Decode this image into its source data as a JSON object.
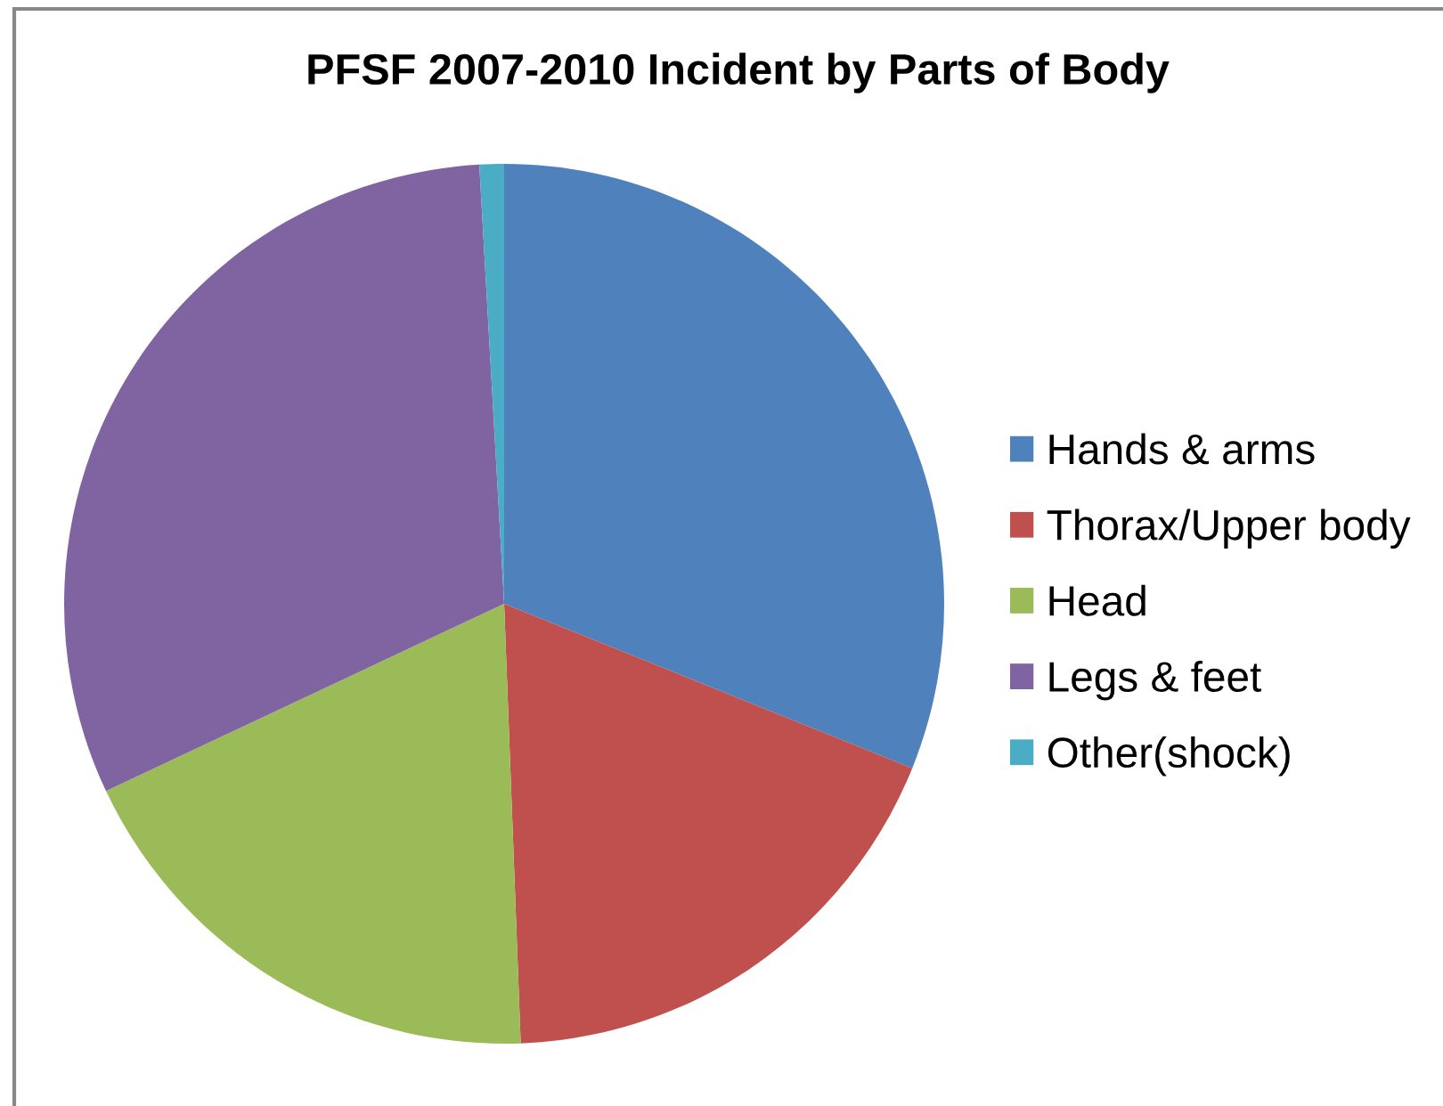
{
  "chart_data": {
    "type": "pie",
    "title": "PFSF 2007-2010 Incident by Parts of Body",
    "categories": [
      "Hands & arms",
      "Thorax/Upper body",
      "Head",
      "Legs & feet",
      "Other(shock)"
    ],
    "values": [
      31.1,
      18.3,
      18.6,
      31.1,
      0.9
    ],
    "colors": [
      "#4f81bd",
      "#c0504d",
      "#9bbb59",
      "#8064a2",
      "#4bacc6"
    ],
    "legend": "right"
  }
}
